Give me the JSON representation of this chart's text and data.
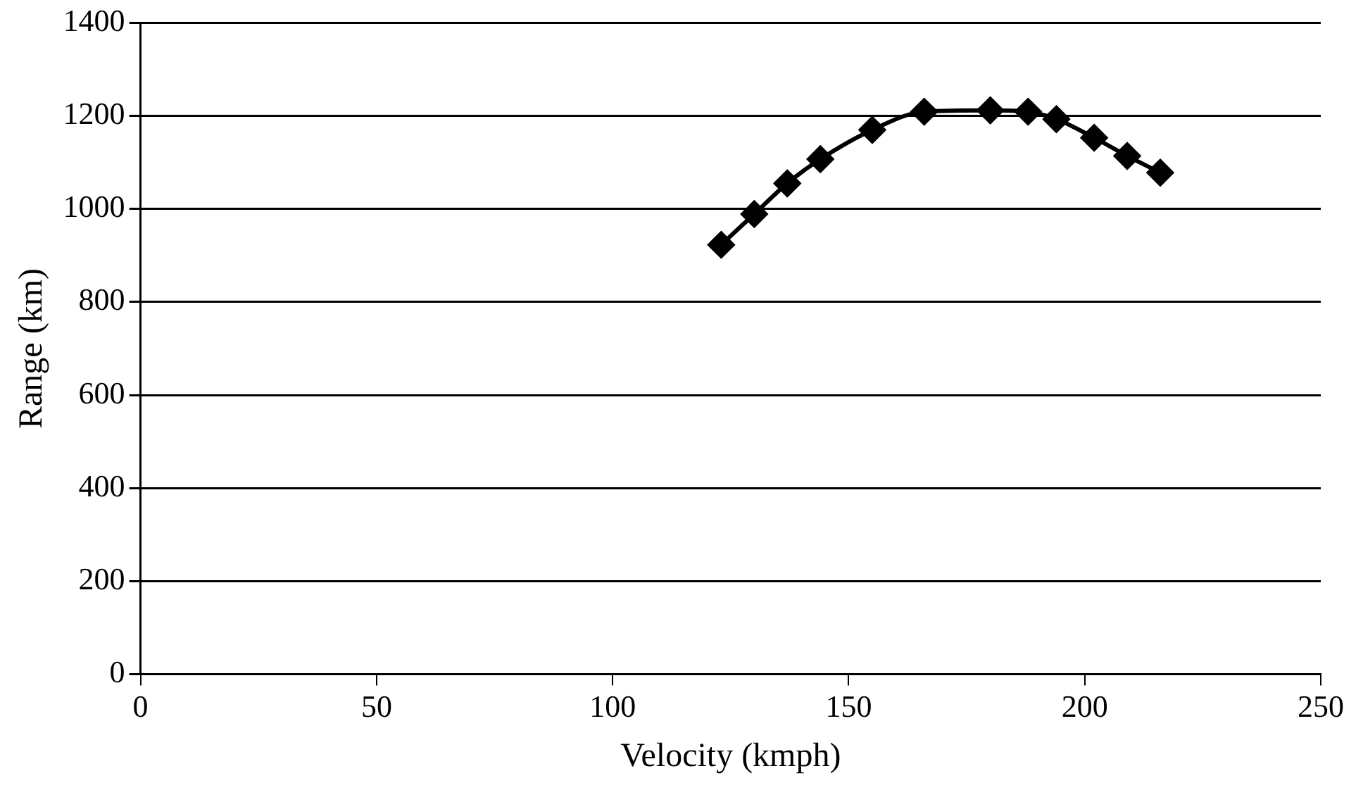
{
  "chart_data": {
    "type": "line",
    "xlabel": "Velocity (kmph)",
    "ylabel": "Range (km)",
    "x": [
      123,
      130,
      137,
      144,
      155,
      166,
      180,
      188,
      194,
      202,
      209,
      216
    ],
    "series": [
      {
        "color": "#000000",
        "values": [
          923,
          989,
          1055,
          1107,
          1170,
          1209,
          1212,
          1209,
          1193,
          1153,
          1114,
          1078
        ]
      }
    ],
    "xlim": [
      0,
      250
    ],
    "xticks": [
      0,
      50,
      100,
      150,
      200,
      250
    ],
    "ylim": [
      0,
      1400
    ],
    "yticks": [
      0,
      200,
      400,
      600,
      800,
      1000,
      1200,
      1400
    ],
    "grid": "y",
    "legend": false,
    "marker": "diamond",
    "line_style": "solid"
  }
}
